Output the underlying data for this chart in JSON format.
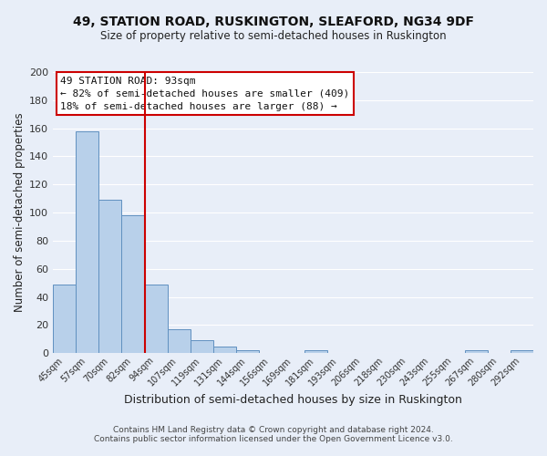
{
  "title": "49, STATION ROAD, RUSKINGTON, SLEAFORD, NG34 9DF",
  "subtitle": "Size of property relative to semi-detached houses in Ruskington",
  "xlabel": "Distribution of semi-detached houses by size in Ruskington",
  "ylabel": "Number of semi-detached properties",
  "bar_labels": [
    "45sqm",
    "57sqm",
    "70sqm",
    "82sqm",
    "94sqm",
    "107sqm",
    "119sqm",
    "131sqm",
    "144sqm",
    "156sqm",
    "169sqm",
    "181sqm",
    "193sqm",
    "206sqm",
    "218sqm",
    "230sqm",
    "243sqm",
    "255sqm",
    "267sqm",
    "280sqm",
    "292sqm"
  ],
  "bar_values": [
    49,
    158,
    109,
    98,
    49,
    17,
    9,
    5,
    2,
    0,
    0,
    2,
    0,
    0,
    0,
    0,
    0,
    0,
    2,
    0,
    2
  ],
  "bar_color": "#b8d0ea",
  "bar_edge_color": "#6090c0",
  "background_color": "#e8eef8",
  "grid_color": "#ffffff",
  "red_line_index": 4,
  "red_line_color": "#cc0000",
  "annotation_title": "49 STATION ROAD: 93sqm",
  "annotation_line1": "← 82% of semi-detached houses are smaller (409)",
  "annotation_line2": "18% of semi-detached houses are larger (88) →",
  "annotation_box_edge": "#cc0000",
  "annotation_box_face": "#ffffff",
  "ylim": [
    0,
    200
  ],
  "yticks": [
    0,
    20,
    40,
    60,
    80,
    100,
    120,
    140,
    160,
    180,
    200
  ],
  "footer_line1": "Contains HM Land Registry data © Crown copyright and database right 2024.",
  "footer_line2": "Contains public sector information licensed under the Open Government Licence v3.0."
}
